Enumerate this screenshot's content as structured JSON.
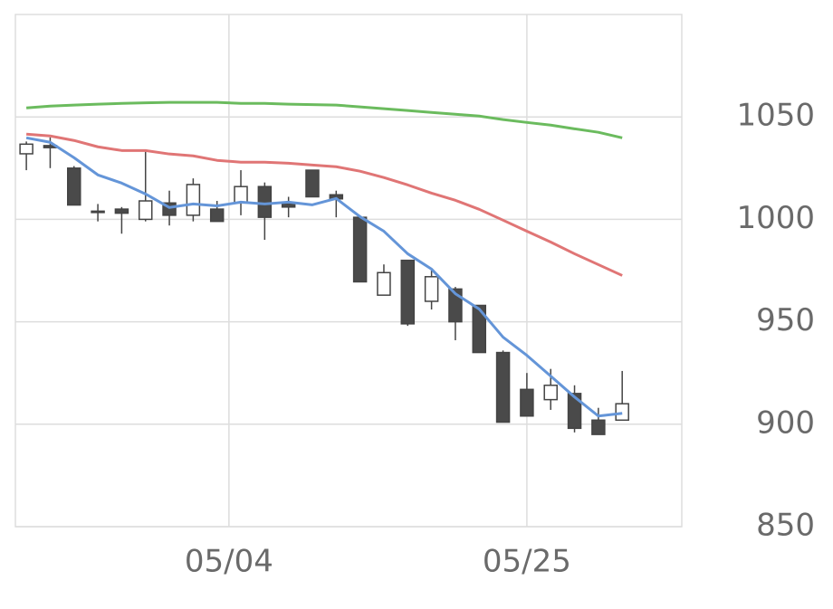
{
  "chart_data": {
    "type": "candlestick",
    "x": [
      0,
      1,
      2,
      3,
      4,
      5,
      6,
      7,
      8,
      9,
      10,
      11,
      12,
      13,
      14,
      15,
      16,
      17,
      18,
      19,
      20,
      21,
      22,
      23,
      24,
      25
    ],
    "open": [
      1032,
      1036,
      1025,
      1004,
      1005,
      1000,
      1008,
      1002,
      1005,
      1008,
      1016,
      1008,
      1024,
      1012,
      1001,
      963,
      980,
      960,
      966,
      958,
      935,
      917,
      912,
      915,
      902,
      902
    ],
    "high": [
      1038,
      1040,
      1026,
      1007.5,
      1006,
      1033,
      1014,
      1020,
      1009,
      1024,
      1018,
      1011,
      1024,
      1014,
      1002,
      978,
      980,
      975,
      967,
      958,
      936,
      925,
      927,
      919,
      908,
      926
    ],
    "low": [
      1024,
      1025,
      1007,
      999,
      993,
      999,
      997,
      999,
      999,
      1002,
      990,
      1001,
      1011,
      1001,
      969.5,
      963,
      948,
      956,
      941,
      935,
      901,
      904,
      907,
      896,
      895,
      902
    ],
    "close": [
      1036.7,
      1035,
      1007,
      1004,
      1003,
      1009,
      1002,
      1017,
      999,
      1016,
      1001,
      1006,
      1011,
      1010,
      969.5,
      974,
      949,
      972,
      950,
      935,
      901,
      904,
      919,
      898,
      895,
      910
    ],
    "up_color": "#ffffff",
    "down_color": "#4a4a4a",
    "candle_stroke": "#444444",
    "series": [
      {
        "color": "#6495d8",
        "values": [
          1039.8,
          1037.6,
          1030.1,
          1021.7,
          1017.7,
          1012.4,
          1005.8,
          1007.5,
          1006.6,
          1008.4,
          1007.5,
          1008.4,
          1007.1,
          1010.2,
          1001.3,
          994.2,
          983.2,
          975.7,
          963.7,
          956.2,
          942.5,
          933.6,
          923.5,
          913.3,
          904,
          905.3
        ]
      },
      {
        "color": "#e07575",
        "values": [
          1041.6,
          1040.7,
          1038.5,
          1035.4,
          1033.6,
          1033.6,
          1031.9,
          1031,
          1028.8,
          1027.9,
          1027.9,
          1027.4,
          1026.5,
          1025.7,
          1023.5,
          1020.4,
          1016.8,
          1012.8,
          1009.3,
          1004.9,
          999.6,
          994.2,
          988.9,
          983.2,
          977.9,
          972.6
        ]
      },
      {
        "color": "#6bbb5e",
        "values": [
          1054.4,
          1055.3,
          1055.8,
          1056.2,
          1056.6,
          1056.9,
          1057.1,
          1057.1,
          1057.1,
          1056.6,
          1056.6,
          1056.2,
          1056,
          1055.8,
          1054.9,
          1054,
          1053.1,
          1052.2,
          1051.3,
          1050.4,
          1048.7,
          1047.3,
          1046,
          1044.2,
          1042.5,
          1039.8
        ]
      }
    ],
    "xlim": [
      -0.46,
      27.5
    ],
    "xticks": [
      {
        "value": 8.5,
        "label": "05/04"
      },
      {
        "value": 21,
        "label": "05/25"
      }
    ],
    "ylim": [
      850,
      1100
    ],
    "yticks": [
      850,
      900,
      950,
      1000,
      1050
    ],
    "grid": true
  }
}
